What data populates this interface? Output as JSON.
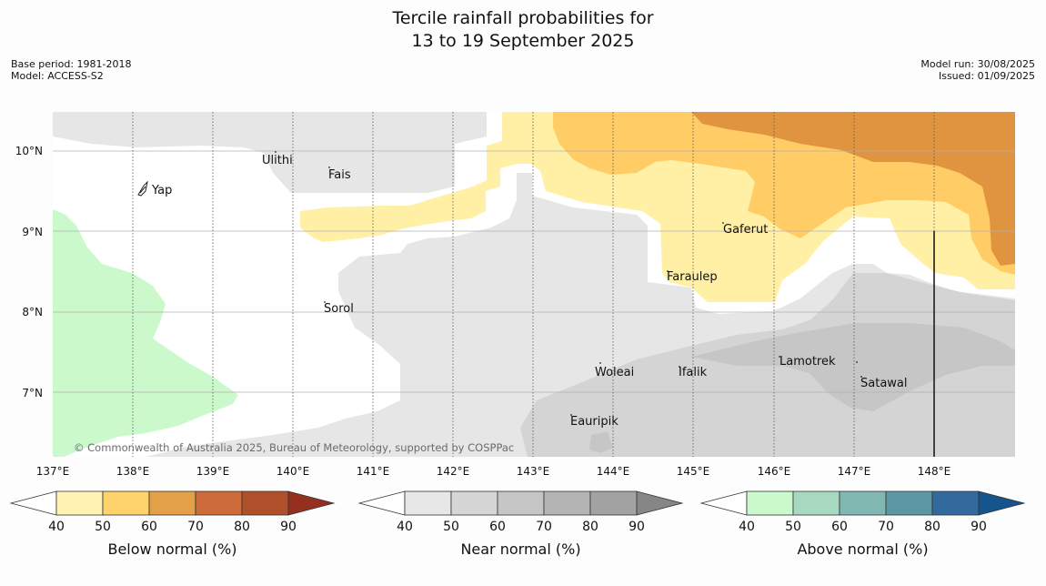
{
  "title": {
    "line1": "Tercile rainfall probabilities for",
    "line2": "13 to 19 September 2025"
  },
  "meta": {
    "base_period": "Base period: 1981-2018",
    "model": "Model: ACCESS-S2",
    "model_run": "Model run: 30/08/2025",
    "issued": "Issued: 01/09/2025"
  },
  "map": {
    "lon_ticks": [
      "137°E",
      "138°E",
      "139°E",
      "140°E",
      "141°E",
      "142°E",
      "143°E",
      "144°E",
      "145°E",
      "146°E",
      "147°E",
      "148°E"
    ],
    "lat_ticks": [
      "10°N",
      "9°N",
      "8°N",
      "7°N"
    ],
    "places": [
      {
        "name": "Ulithi"
      },
      {
        "name": "Fais"
      },
      {
        "name": "Yap"
      },
      {
        "name": "Gaferut"
      },
      {
        "name": "Faraulep"
      },
      {
        "name": "Sorol"
      },
      {
        "name": "Woleai"
      },
      {
        "name": "Ifalik"
      },
      {
        "name": "Lamotrek"
      },
      {
        "name": "Satawal"
      },
      {
        "name": "Eauripik"
      }
    ],
    "copyright": "© Commonwealth of Australia 2025, Bureau of Meteorology, supported by COSPPac"
  },
  "colorbars": [
    {
      "title": "Below normal (%)",
      "ticks": [
        "40",
        "50",
        "60",
        "70",
        "80",
        "90"
      ],
      "colors": [
        "#fff2b3",
        "#ffd36b",
        "#e3a047",
        "#cd6b3a",
        "#b0502a",
        "#96301e"
      ]
    },
    {
      "title": "Near normal (%)",
      "ticks": [
        "40",
        "50",
        "60",
        "70",
        "80",
        "90"
      ],
      "colors": [
        "#e7e7e7",
        "#d6d6d6",
        "#c6c6c6",
        "#b4b4b4",
        "#a2a2a2",
        "#868686"
      ]
    },
    {
      "title": "Above normal (%)",
      "ticks": [
        "40",
        "50",
        "60",
        "70",
        "80",
        "90"
      ],
      "colors": [
        "#ccf9cc",
        "#a6d9bf",
        "#80b7b0",
        "#5d97a4",
        "#336a9e",
        "#16548c"
      ]
    }
  ]
}
